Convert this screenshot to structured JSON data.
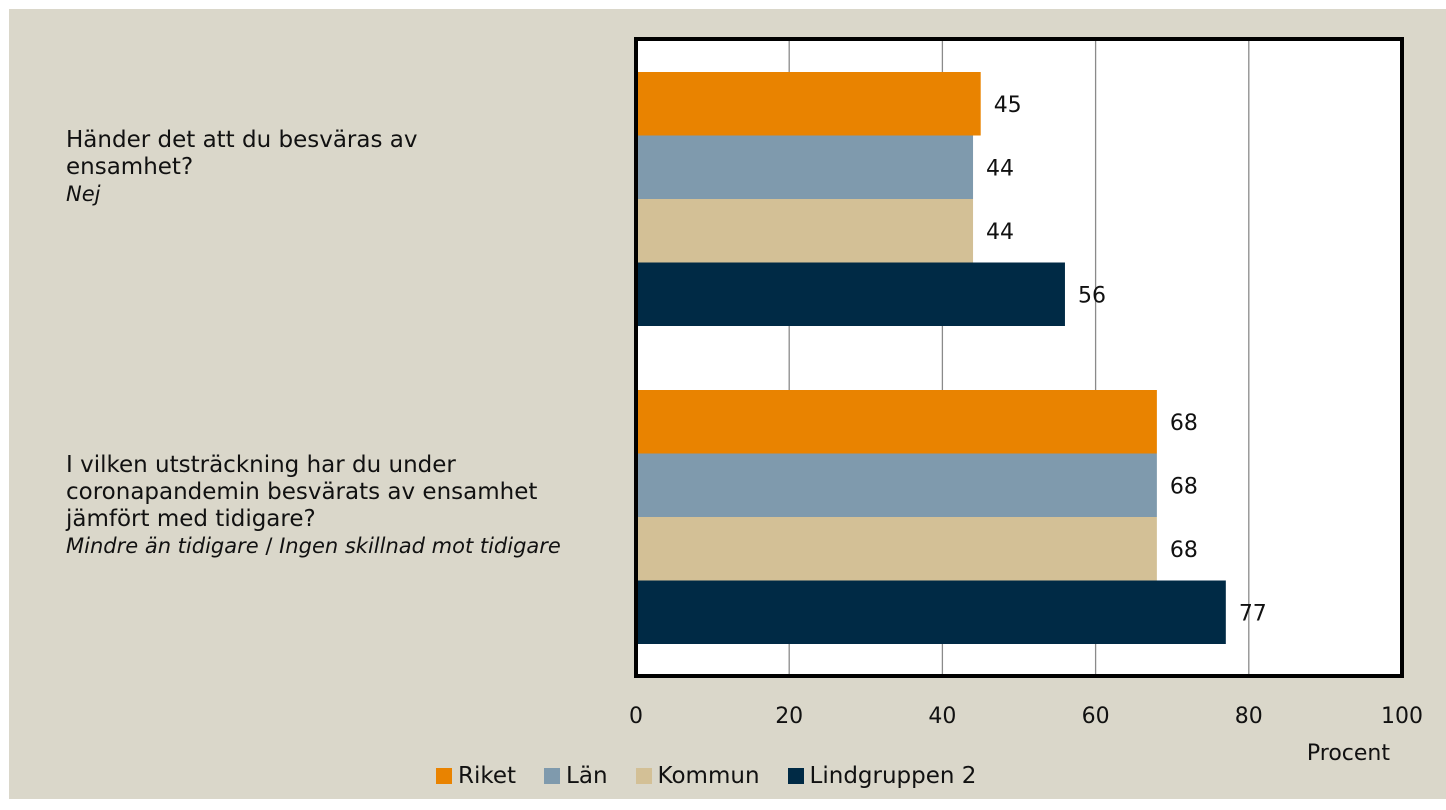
{
  "chart_data": {
    "type": "bar",
    "orientation": "horizontal",
    "categories": [
      {
        "question": "Händer det att du besväras av ensamhet?",
        "answer": "Nej"
      },
      {
        "question": "I vilken utsträckning har du under coronapandemin besvärats av ensamhet jämfört med tidigare?",
        "answer_parts": [
          "Mindre än tidigare",
          " / ",
          "Ingen skillnad mot tidigare"
        ]
      }
    ],
    "series": [
      {
        "name": "Riket",
        "color": "#e98300",
        "values": [
          45,
          68
        ]
      },
      {
        "name": "Län",
        "color": "#7f9aad",
        "values": [
          44,
          68
        ]
      },
      {
        "name": "Kommun",
        "color": "#d3c096",
        "values": [
          44,
          68
        ]
      },
      {
        "name": "Lindgruppen 2",
        "color": "#002a45",
        "values": [
          56,
          77
        ]
      }
    ],
    "xlim": [
      0,
      100
    ],
    "xticks": [
      "0",
      "20",
      "40",
      "60",
      "80",
      "100"
    ],
    "xlabel": "Procent",
    "grid": true,
    "legend_position": "bottom",
    "data_labels": true
  }
}
